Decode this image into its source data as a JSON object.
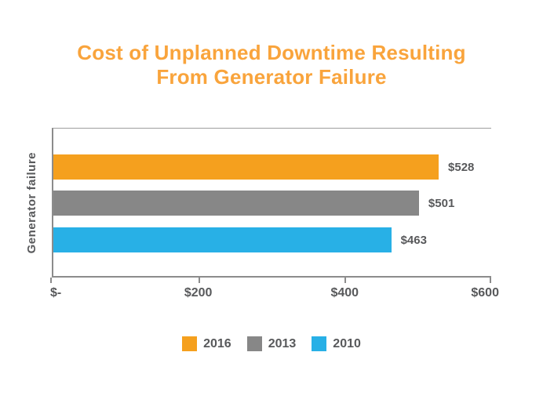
{
  "title": {
    "line1": "Cost of Unplanned Downtime Resulting",
    "line2": "From Generator Failure"
  },
  "chart_data": {
    "type": "bar",
    "orientation": "horizontal",
    "title": "Cost of Unplanned Downtime Resulting From Generator Failure",
    "categories": [
      "Generator failure"
    ],
    "series": [
      {
        "name": "2016",
        "value": 528,
        "value_label": "$528",
        "color": "#F5A01E"
      },
      {
        "name": "2013",
        "value": 501,
        "value_label": "$501",
        "color": "#878787"
      },
      {
        "name": "2010",
        "value": 463,
        "value_label": "$463",
        "color": "#28B0E6"
      }
    ],
    "xlim": [
      0,
      600
    ],
    "x_tick_labels": [
      "$-",
      "$200",
      "$400",
      "$600"
    ],
    "ylabel": "Generator failure",
    "grid": false,
    "legend_position": "bottom",
    "legend": [
      "2016",
      "2013",
      "2010"
    ]
  },
  "colors": {
    "title_orange": "#F9A43C",
    "bar_orange": "#F5A01E",
    "bar_gray": "#878787",
    "bar_blue": "#28B0E6",
    "axis_line": "#8C8C8C",
    "plot_top_border": "#9E9E9E",
    "label_text": "#58595B",
    "background": "#FFFFFF"
  }
}
